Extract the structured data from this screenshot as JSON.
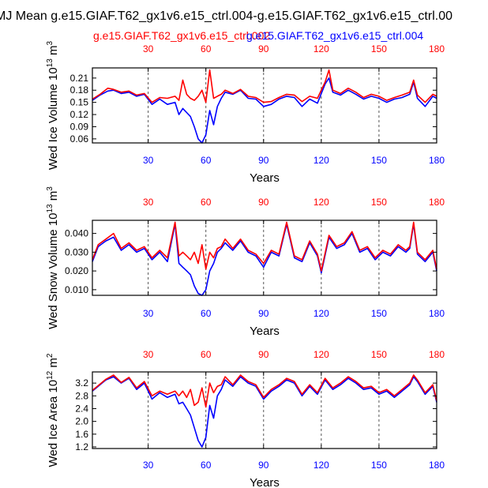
{
  "title": "MJ Mean g.e15.GIAF.T62_gx1v6.e15_ctrl.004-g.e15.GIAF.T62_gx1v6.e15_ctrl.00",
  "legend": {
    "red_label": "g.e15.GIAF.T62_gx1v6.e15_ctrl.002",
    "blue_label": "g.e15.GIAF.T62_gx1v6.e15_ctrl.004",
    "red_color": "#ff0000",
    "blue_color": "#0000ff"
  },
  "chart_data": [
    {
      "type": "line",
      "name": "ice-volume",
      "xlabel": "Years",
      "ylabel_main": "Wed Ice Volume 10",
      "ylabel_exp": "13",
      "ylabel_unit_main": " m",
      "ylabel_unit_exp": "3",
      "xlim": [
        1,
        180
      ],
      "ylim": [
        0.05,
        0.235
      ],
      "yticks": [
        0.06,
        0.09,
        0.12,
        0.15,
        0.18,
        0.21
      ],
      "ytick_labels": [
        "0.06",
        "0.09",
        "0.12",
        "0.15",
        "0.18",
        "0.21"
      ],
      "xticks": [
        30,
        60,
        90,
        120,
        150,
        180
      ],
      "xtick_labels": [
        "30",
        "60",
        "90",
        "120",
        "150",
        "180"
      ],
      "series": [
        {
          "name": "g.e15.GIAF.T62_gx1v6.e15_ctrl.004",
          "color": "#0000ff",
          "x": [
            1,
            5,
            9,
            12,
            16,
            20,
            24,
            28,
            32,
            36,
            40,
            44,
            46,
            48,
            50,
            52,
            54,
            56,
            58,
            60,
            62,
            64,
            66,
            68,
            70,
            74,
            78,
            82,
            86,
            90,
            94,
            98,
            102,
            106,
            110,
            114,
            118,
            122,
            124,
            126,
            130,
            134,
            138,
            142,
            146,
            150,
            154,
            158,
            162,
            166,
            168,
            170,
            174,
            178,
            180
          ],
          "values": [
            0.155,
            0.168,
            0.178,
            0.18,
            0.172,
            0.175,
            0.165,
            0.17,
            0.145,
            0.158,
            0.145,
            0.15,
            0.12,
            0.135,
            0.125,
            0.115,
            0.09,
            0.06,
            0.05,
            0.07,
            0.13,
            0.095,
            0.14,
            0.16,
            0.175,
            0.17,
            0.18,
            0.16,
            0.158,
            0.14,
            0.145,
            0.158,
            0.165,
            0.162,
            0.14,
            0.158,
            0.148,
            0.195,
            0.21,
            0.175,
            0.168,
            0.18,
            0.17,
            0.158,
            0.165,
            0.16,
            0.15,
            0.158,
            0.162,
            0.17,
            0.2,
            0.16,
            0.14,
            0.165,
            0.16
          ]
        },
        {
          "name": "g.e15.GIAF.T62_gx1v6.e15_ctrl.002",
          "color": "#ff0000",
          "x": [
            1,
            5,
            9,
            12,
            16,
            20,
            24,
            28,
            32,
            36,
            40,
            44,
            46,
            48,
            50,
            52,
            54,
            56,
            58,
            60,
            62,
            64,
            66,
            68,
            70,
            74,
            78,
            82,
            86,
            90,
            94,
            98,
            102,
            106,
            110,
            114,
            118,
            122,
            124,
            126,
            130,
            134,
            138,
            142,
            146,
            150,
            154,
            158,
            162,
            166,
            168,
            170,
            174,
            178,
            180
          ],
          "values": [
            0.158,
            0.17,
            0.185,
            0.182,
            0.175,
            0.178,
            0.168,
            0.172,
            0.15,
            0.162,
            0.16,
            0.165,
            0.155,
            0.205,
            0.17,
            0.16,
            0.155,
            0.165,
            0.18,
            0.15,
            0.23,
            0.16,
            0.165,
            0.17,
            0.18,
            0.172,
            0.182,
            0.165,
            0.162,
            0.15,
            0.152,
            0.162,
            0.17,
            0.168,
            0.152,
            0.165,
            0.16,
            0.2,
            0.23,
            0.18,
            0.172,
            0.185,
            0.175,
            0.162,
            0.17,
            0.165,
            0.155,
            0.162,
            0.168,
            0.175,
            0.205,
            0.168,
            0.15,
            0.17,
            0.165
          ]
        }
      ]
    },
    {
      "type": "line",
      "name": "snow-volume",
      "xlabel": "Years",
      "ylabel_main": "Wed Snow Volume 10",
      "ylabel_exp": "13",
      "ylabel_unit_main": " m",
      "ylabel_unit_exp": "3",
      "xlim": [
        1,
        180
      ],
      "ylim": [
        0.007,
        0.047
      ],
      "yticks": [
        0.01,
        0.02,
        0.03,
        0.04
      ],
      "ytick_labels": [
        "0.010",
        "0.020",
        "0.030",
        "0.040"
      ],
      "xticks": [
        30,
        60,
        90,
        120,
        150,
        180
      ],
      "xtick_labels": [
        "30",
        "60",
        "90",
        "120",
        "150",
        "180"
      ],
      "series": [
        {
          "name": "g.e15.GIAF.T62_gx1v6.e15_ctrl.004",
          "color": "#0000ff",
          "x": [
            1,
            4,
            8,
            12,
            16,
            20,
            24,
            28,
            32,
            36,
            40,
            44,
            46,
            48,
            50,
            52,
            54,
            56,
            58,
            60,
            62,
            64,
            66,
            68,
            70,
            74,
            78,
            82,
            86,
            90,
            94,
            98,
            102,
            106,
            110,
            114,
            118,
            120,
            124,
            128,
            132,
            136,
            140,
            144,
            148,
            152,
            156,
            160,
            164,
            166,
            168,
            170,
            174,
            178,
            180
          ],
          "values": [
            0.025,
            0.033,
            0.036,
            0.038,
            0.031,
            0.034,
            0.03,
            0.032,
            0.026,
            0.03,
            0.025,
            0.045,
            0.024,
            0.022,
            0.02,
            0.018,
            0.012,
            0.008,
            0.007,
            0.01,
            0.02,
            0.024,
            0.03,
            0.032,
            0.035,
            0.031,
            0.036,
            0.03,
            0.028,
            0.022,
            0.03,
            0.028,
            0.045,
            0.027,
            0.025,
            0.035,
            0.028,
            0.019,
            0.038,
            0.032,
            0.034,
            0.04,
            0.03,
            0.032,
            0.026,
            0.03,
            0.028,
            0.033,
            0.03,
            0.032,
            0.045,
            0.029,
            0.025,
            0.03,
            0.02
          ]
        },
        {
          "name": "g.e15.GIAF.T62_gx1v6.e15_ctrl.002",
          "color": "#ff0000",
          "x": [
            1,
            4,
            8,
            12,
            16,
            20,
            24,
            28,
            32,
            36,
            40,
            44,
            46,
            48,
            50,
            52,
            54,
            56,
            58,
            60,
            62,
            64,
            66,
            68,
            70,
            74,
            78,
            82,
            86,
            90,
            94,
            98,
            102,
            106,
            110,
            114,
            118,
            120,
            124,
            128,
            132,
            136,
            140,
            144,
            148,
            152,
            156,
            160,
            164,
            166,
            168,
            170,
            174,
            178,
            180
          ],
          "values": [
            0.026,
            0.034,
            0.037,
            0.04,
            0.032,
            0.035,
            0.031,
            0.033,
            0.027,
            0.031,
            0.027,
            0.046,
            0.028,
            0.03,
            0.028,
            0.026,
            0.03,
            0.024,
            0.034,
            0.021,
            0.03,
            0.027,
            0.032,
            0.033,
            0.037,
            0.032,
            0.037,
            0.031,
            0.029,
            0.024,
            0.031,
            0.029,
            0.046,
            0.028,
            0.026,
            0.036,
            0.029,
            0.02,
            0.039,
            0.033,
            0.035,
            0.041,
            0.031,
            0.033,
            0.027,
            0.031,
            0.029,
            0.034,
            0.031,
            0.033,
            0.046,
            0.03,
            0.026,
            0.031,
            0.021
          ]
        }
      ]
    },
    {
      "type": "line",
      "name": "ice-area",
      "xlabel": "Years",
      "ylabel_main": "Wed Ice Area 10",
      "ylabel_exp": "12",
      "ylabel_unit_main": " m",
      "ylabel_unit_exp": "2",
      "xlim": [
        1,
        180
      ],
      "ylim": [
        1.15,
        3.55
      ],
      "yticks": [
        1.2,
        1.6,
        2.0,
        2.4,
        2.8,
        3.2
      ],
      "ytick_labels": [
        "1.2",
        "1.6",
        "2.0",
        "2.4",
        "2.8",
        "3.2"
      ],
      "xticks": [
        30,
        60,
        90,
        120,
        150,
        180
      ],
      "xtick_labels": [
        "30",
        "60",
        "90",
        "120",
        "150",
        "180"
      ],
      "series": [
        {
          "name": "g.e15.GIAF.T62_gx1v6.e15_ctrl.004",
          "color": "#0000ff",
          "x": [
            1,
            4,
            8,
            12,
            16,
            20,
            24,
            28,
            32,
            36,
            40,
            44,
            46,
            48,
            50,
            52,
            54,
            56,
            58,
            60,
            62,
            64,
            66,
            68,
            70,
            74,
            78,
            82,
            86,
            90,
            94,
            98,
            102,
            106,
            110,
            114,
            118,
            122,
            126,
            130,
            134,
            138,
            142,
            146,
            150,
            154,
            158,
            162,
            166,
            168,
            170,
            174,
            178,
            180
          ],
          "values": [
            2.95,
            3.1,
            3.3,
            3.4,
            3.2,
            3.35,
            3.0,
            3.2,
            2.7,
            2.9,
            2.75,
            2.85,
            2.55,
            2.6,
            2.4,
            2.2,
            1.8,
            1.4,
            1.2,
            1.5,
            2.5,
            2.1,
            2.8,
            3.0,
            3.3,
            3.1,
            3.4,
            3.2,
            3.1,
            2.7,
            2.95,
            3.1,
            3.3,
            3.2,
            2.8,
            3.1,
            2.85,
            3.3,
            3.0,
            3.15,
            3.35,
            3.2,
            3.0,
            3.05,
            2.85,
            2.95,
            2.75,
            2.95,
            3.15,
            3.4,
            3.25,
            2.85,
            3.1,
            2.6
          ]
        },
        {
          "name": "g.e15.GIAF.T62_gx1v6.e15_ctrl.002",
          "color": "#ff0000",
          "x": [
            1,
            4,
            8,
            12,
            16,
            20,
            24,
            28,
            32,
            36,
            40,
            44,
            46,
            48,
            50,
            52,
            54,
            56,
            58,
            60,
            62,
            64,
            66,
            68,
            70,
            74,
            78,
            82,
            86,
            90,
            94,
            98,
            102,
            106,
            110,
            114,
            118,
            122,
            126,
            130,
            134,
            138,
            142,
            146,
            150,
            154,
            158,
            162,
            166,
            168,
            170,
            174,
            178,
            180
          ],
          "values": [
            2.97,
            3.12,
            3.32,
            3.45,
            3.22,
            3.38,
            3.05,
            3.25,
            2.8,
            2.95,
            2.85,
            2.95,
            2.8,
            2.95,
            2.75,
            3.0,
            2.5,
            2.6,
            3.05,
            2.45,
            3.2,
            2.9,
            3.1,
            3.15,
            3.4,
            3.15,
            3.45,
            3.25,
            3.15,
            2.75,
            3.0,
            3.15,
            3.35,
            3.25,
            2.85,
            3.15,
            2.9,
            3.35,
            3.05,
            3.2,
            3.4,
            3.25,
            3.05,
            3.1,
            2.9,
            3.0,
            2.8,
            3.0,
            3.2,
            3.45,
            3.3,
            2.9,
            3.15,
            2.65
          ]
        }
      ]
    }
  ]
}
